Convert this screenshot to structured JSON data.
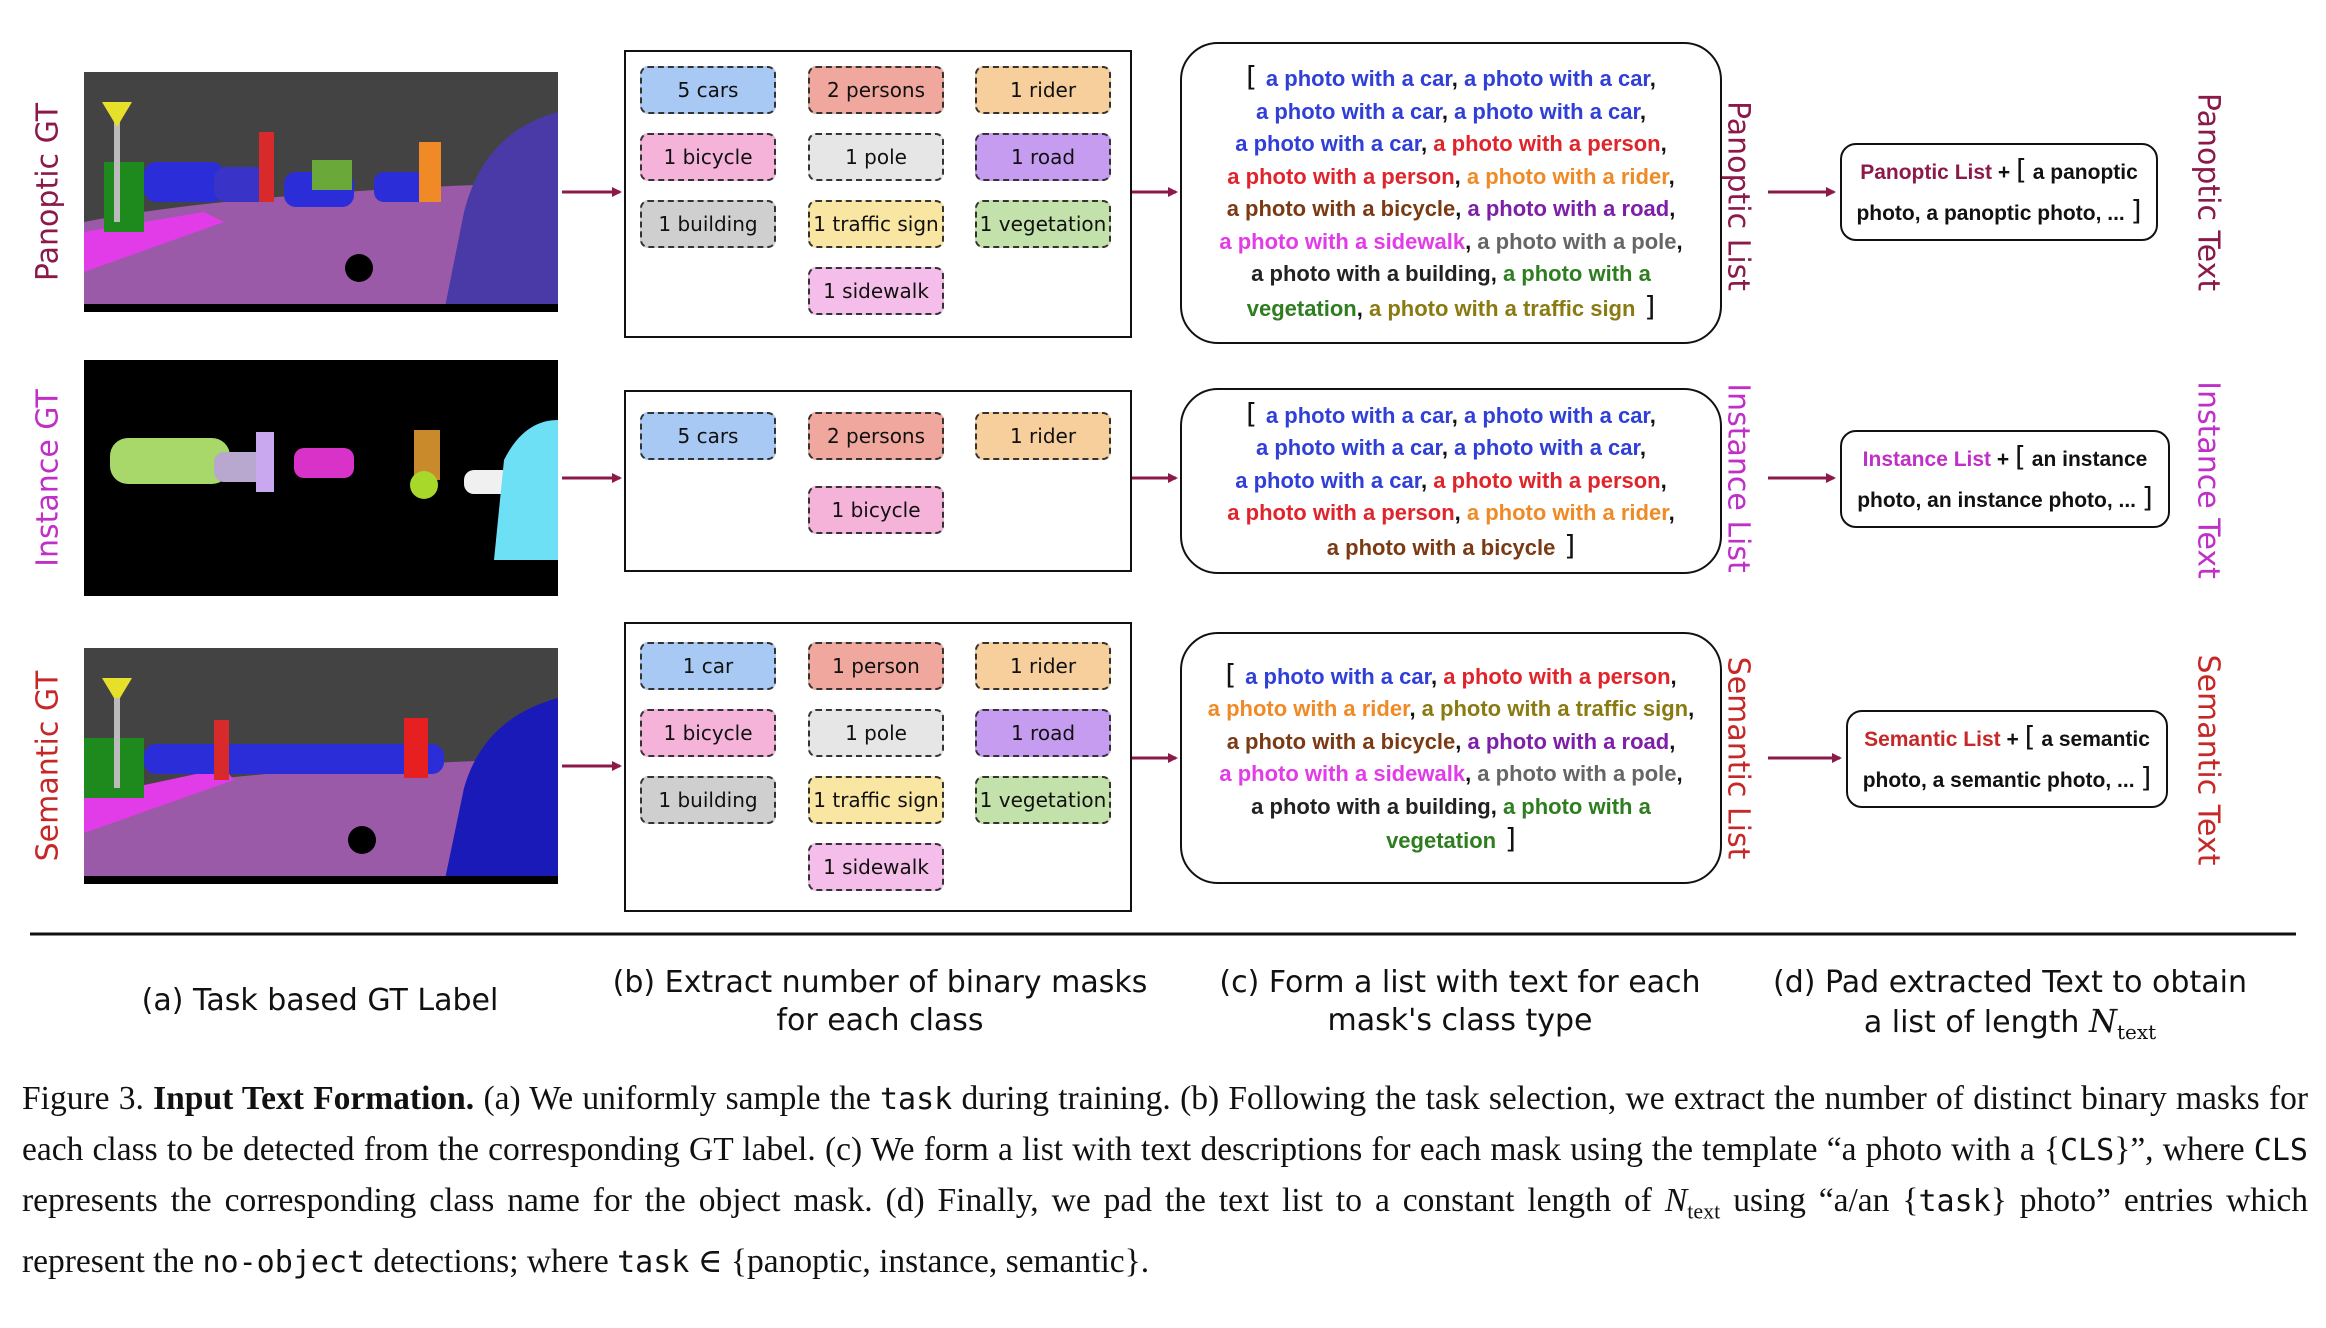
{
  "rows": [
    {
      "id": "panoptic",
      "gt_label": "Panoptic GT",
      "gt_color": "#8b1a4a",
      "list_label": "Panoptic List",
      "text_label": "Panoptic Text",
      "chips": [
        {
          "text": "5 cars",
          "color": "#a9c9f5"
        },
        {
          "text": "2 persons",
          "color": "#f0a89e"
        },
        {
          "text": "1 rider",
          "color": "#f7cf9d"
        },
        {
          "text": "1 bicycle",
          "color": "#f5b3da"
        },
        {
          "text": "1 pole",
          "color": "#e6e6e6"
        },
        {
          "text": "1 road",
          "color": "#c69cf0"
        },
        {
          "text": "1 building",
          "color": "#cfcfcf"
        },
        {
          "text": "1 traffic sign",
          "color": "#f9e6a2"
        },
        {
          "text": "1 vegetation",
          "color": "#c3e2ab"
        },
        {
          "text": "1 sidewalk",
          "color": "#f5bde9"
        }
      ],
      "list_lines": [
        [
          {
            "t": "a photo with a car",
            "c": "#2f3fd8"
          },
          {
            "t": ", ",
            "c": "#111"
          },
          {
            "t": "a photo with a car",
            "c": "#2f3fd8"
          },
          {
            "t": ",",
            "c": "#111"
          }
        ],
        [
          {
            "t": "a photo with a car",
            "c": "#2f3fd8"
          },
          {
            "t": ", ",
            "c": "#111"
          },
          {
            "t": "a photo with a car",
            "c": "#2f3fd8"
          },
          {
            "t": ",",
            "c": "#111"
          }
        ],
        [
          {
            "t": "a photo with a car",
            "c": "#2f3fd8"
          },
          {
            "t": ", ",
            "c": "#111"
          },
          {
            "t": "a photo with a person",
            "c": "#e0242b"
          },
          {
            "t": ",",
            "c": "#111"
          }
        ],
        [
          {
            "t": "a photo with a person",
            "c": "#e0242b"
          },
          {
            "t": ", ",
            "c": "#111"
          },
          {
            "t": "a photo with a rider",
            "c": "#f08a26"
          },
          {
            "t": ",",
            "c": "#111"
          }
        ],
        [
          {
            "t": "a photo with a bicycle",
            "c": "#7a3a14"
          },
          {
            "t": ", ",
            "c": "#111"
          },
          {
            "t": "a photo with a road",
            "c": "#7d1fa8"
          },
          {
            "t": ",",
            "c": "#111"
          }
        ],
        [
          {
            "t": "a photo with a sidewalk",
            "c": "#e23be8"
          },
          {
            "t": ", ",
            "c": "#111"
          },
          {
            "t": "a photo with a pole",
            "c": "#666666"
          },
          {
            "t": ",",
            "c": "#111"
          }
        ],
        [
          {
            "t": "a photo with a building",
            "c": "#222222"
          },
          {
            "t": ", ",
            "c": "#111"
          },
          {
            "t": "a photo with a",
            "c": "#2e7d1f"
          }
        ],
        [
          {
            "t": "vegetation",
            "c": "#2e7d1f"
          },
          {
            "t": ", ",
            "c": "#111"
          },
          {
            "t": "a photo with a traffic sign",
            "c": "#8a7a12"
          }
        ]
      ],
      "pad_list": "Panoptic List",
      "pad_color": "#8b1a4a",
      "pad_line1": "a panoptic",
      "pad_line2": "photo, a panoptic photo, ..."
    },
    {
      "id": "instance",
      "gt_label": "Instance GT",
      "gt_color": "#c02fc8",
      "list_label": "Instance List",
      "text_label": "Instance Text",
      "chips": [
        {
          "text": "5 cars",
          "color": "#a9c9f5"
        },
        {
          "text": "2 persons",
          "color": "#f0a89e"
        },
        {
          "text": "1 rider",
          "color": "#f7cf9d"
        },
        {
          "text": "1 bicycle",
          "color": "#f5b3da"
        }
      ],
      "list_lines": [
        [
          {
            "t": "a photo with a car",
            "c": "#2f3fd8"
          },
          {
            "t": ", ",
            "c": "#111"
          },
          {
            "t": "a photo with a car",
            "c": "#2f3fd8"
          },
          {
            "t": ",",
            "c": "#111"
          }
        ],
        [
          {
            "t": "a photo with a car",
            "c": "#2f3fd8"
          },
          {
            "t": ", ",
            "c": "#111"
          },
          {
            "t": "a photo with a car",
            "c": "#2f3fd8"
          },
          {
            "t": ",",
            "c": "#111"
          }
        ],
        [
          {
            "t": "a photo with a car",
            "c": "#2f3fd8"
          },
          {
            "t": ", ",
            "c": "#111"
          },
          {
            "t": "a photo with a person",
            "c": "#e0242b"
          },
          {
            "t": ",",
            "c": "#111"
          }
        ],
        [
          {
            "t": "a photo with a person",
            "c": "#e0242b"
          },
          {
            "t": ", ",
            "c": "#111"
          },
          {
            "t": "a photo with a rider",
            "c": "#f08a26"
          },
          {
            "t": ",",
            "c": "#111"
          }
        ],
        [
          {
            "t": "a photo with a bicycle",
            "c": "#7a3a14"
          }
        ]
      ],
      "pad_list": "Instance List",
      "pad_color": "#c02fc8",
      "pad_line1": "an instance",
      "pad_line2": "photo, an instance photo, ..."
    },
    {
      "id": "semantic",
      "gt_label": "Semantic GT",
      "gt_color": "#c62828",
      "list_label": "Semantic List",
      "text_label": "Semantic Text",
      "chips": [
        {
          "text": "1 car",
          "color": "#a9c9f5"
        },
        {
          "text": "1 person",
          "color": "#f0a89e"
        },
        {
          "text": "1 rider",
          "color": "#f7cf9d"
        },
        {
          "text": "1 bicycle",
          "color": "#f5b3da"
        },
        {
          "text": "1 pole",
          "color": "#e6e6e6"
        },
        {
          "text": "1 road",
          "color": "#c69cf0"
        },
        {
          "text": "1 building",
          "color": "#cfcfcf"
        },
        {
          "text": "1 traffic sign",
          "color": "#f9e6a2"
        },
        {
          "text": "1 vegetation",
          "color": "#c3e2ab"
        },
        {
          "text": "1 sidewalk",
          "color": "#f5bde9"
        }
      ],
      "list_lines": [
        [
          {
            "t": "a photo with a car",
            "c": "#2f3fd8"
          },
          {
            "t": ", ",
            "c": "#111"
          },
          {
            "t": "a photo with a person",
            "c": "#e0242b"
          },
          {
            "t": ",",
            "c": "#111"
          }
        ],
        [
          {
            "t": "a photo with a rider",
            "c": "#f08a26"
          },
          {
            "t": ", ",
            "c": "#111"
          },
          {
            "t": "a photo with a traffic sign",
            "c": "#8a7a12"
          },
          {
            "t": ",",
            "c": "#111"
          }
        ],
        [
          {
            "t": "a photo with a bicycle",
            "c": "#7a3a14"
          },
          {
            "t": ", ",
            "c": "#111"
          },
          {
            "t": "a photo with a road",
            "c": "#7d1fa8"
          },
          {
            "t": ",",
            "c": "#111"
          }
        ],
        [
          {
            "t": "a photo with a sidewalk",
            "c": "#e23be8"
          },
          {
            "t": ", ",
            "c": "#111"
          },
          {
            "t": "a photo with a pole",
            "c": "#666666"
          },
          {
            "t": ",",
            "c": "#111"
          }
        ],
        [
          {
            "t": "a photo with a building",
            "c": "#222222"
          },
          {
            "t": ", ",
            "c": "#111"
          },
          {
            "t": "a photo with a",
            "c": "#2e7d1f"
          }
        ],
        [
          {
            "t": "vegetation",
            "c": "#2e7d1f"
          }
        ]
      ],
      "pad_list": "Semantic List",
      "pad_color": "#c62828",
      "pad_line1": "a semantic",
      "pad_line2": "photo, a semantic photo, ..."
    }
  ],
  "bracket_open": "[",
  "bracket_close": "]",
  "plus": "+",
  "labels": {
    "a": "(a) Task based GT Label",
    "b_line1": "(b) Extract number of binary masks",
    "b_line2": "for each class",
    "c_line1": "(c) Form a list with text for each",
    "c_line2": "mask's class type",
    "d_line1": "(d) Pad extracted Text to obtain",
    "d_line2": "a list of length",
    "d_var": "N",
    "d_sub": "text"
  },
  "caption": {
    "fig_no": "Figure 3.",
    "title": "Input Text Formation.",
    "s1": "(a) We uniformly sample the",
    "task": "task",
    "s2": "during training. (b) Following the task selection, we extract the number of distinct binary masks for each class to be detected from the corresponding GT label. (c) We form a list with text descriptions for each mask using the template “a photo with a {",
    "cls": "CLS",
    "s3": "}”, where",
    "cls2": "CLS",
    "s4": "represents the corresponding class name for the object mask. (d) Finally, we pad the text list to a constant length of",
    "n": "N",
    "nsub": "text",
    "s5": "using “a/an {",
    "task2": "task",
    "s6": "} photo” entries which represent the",
    "noobj": "no-object",
    "s7": "detections; where",
    "task3": "task",
    "s8": "∈ {panoptic, instance, semantic}."
  },
  "colors": {
    "arrow": "#8b1a4a"
  }
}
